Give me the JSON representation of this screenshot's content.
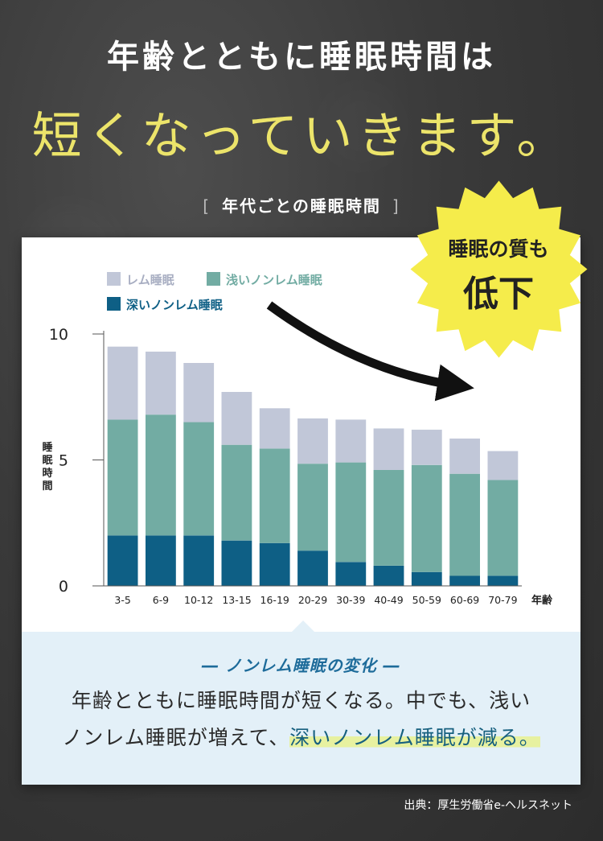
{
  "header": {
    "title_line1": "年齢とともに睡眠時間は",
    "title_line2": "短くなっていきます。",
    "subtitle_open": "[",
    "subtitle": "年代ごとの睡眠時間",
    "subtitle_close": "]"
  },
  "badge": {
    "line1": "睡眠の質も",
    "line2": "低下",
    "color": "#f5ec4b"
  },
  "chart_data": {
    "type": "bar",
    "stacked": true,
    "categories": [
      "3-5",
      "6-9",
      "10-12",
      "13-15",
      "16-19",
      "20-29",
      "30-39",
      "40-49",
      "50-59",
      "60-69",
      "70-79"
    ],
    "series": [
      {
        "name": "深いノンレム睡眠",
        "color": "#0e5f85",
        "values": [
          2.0,
          2.0,
          2.0,
          1.8,
          1.7,
          1.4,
          0.95,
          0.8,
          0.55,
          0.4,
          0.4
        ]
      },
      {
        "name": "浅いノンレム睡眠",
        "color": "#72aca3",
        "values": [
          4.6,
          4.8,
          4.5,
          3.8,
          3.75,
          3.45,
          3.95,
          3.8,
          4.25,
          4.05,
          3.8
        ]
      },
      {
        "name": "レム睡眠",
        "color": "#c1c7d8",
        "values": [
          2.9,
          2.5,
          2.35,
          2.1,
          1.6,
          1.8,
          1.7,
          1.65,
          1.4,
          1.4,
          1.15
        ]
      }
    ],
    "legend_order": [
      "レム睡眠",
      "浅いノンレム睡眠",
      "深いノンレム睡眠"
    ],
    "ylabel": "睡眠時間",
    "xlabel": "年齢",
    "yticks": [
      0,
      5,
      10
    ],
    "ylim": [
      0,
      10
    ],
    "legend_position": "top-left",
    "grid": false
  },
  "note": {
    "heading": "― ノンレム睡眠の変化 ―",
    "line1": "年齢とともに睡眠時間が短くなる。中でも、浅い",
    "line2_a": "ノンレム睡眠が増えて、",
    "line2_highlight": "深いノンレム睡眠が減る。"
  },
  "source": "出典：厚生労働省e-ヘルスネット"
}
